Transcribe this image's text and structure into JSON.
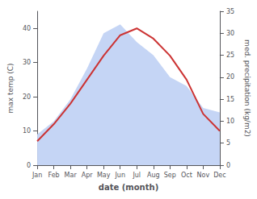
{
  "chart_data": {
    "type": "line",
    "xlabel": "date (month)",
    "ylabel": "max temp (C)",
    "y2label": "med. precipitation (kg/m2)",
    "categories": [
      "Jan",
      "Feb",
      "Mar",
      "Apr",
      "May",
      "Jun",
      "Jul",
      "Aug",
      "Sep",
      "Oct",
      "Nov",
      "Dec"
    ],
    "series": [
      {
        "type": "area",
        "color": "#c5d5f5",
        "axis": "y2",
        "values": [
          7,
          10,
          15,
          22,
          30,
          32,
          28,
          25,
          20,
          18,
          13,
          12
        ]
      },
      {
        "type": "line",
        "color": "#cc3333",
        "values": [
          7,
          12,
          18,
          25,
          32,
          38,
          40,
          37,
          32,
          25,
          15,
          10
        ]
      }
    ],
    "ylim": [
      0,
      45
    ],
    "yticks": [
      0,
      10,
      20,
      30,
      40
    ],
    "y2lim": [
      0,
      35
    ],
    "y2ticks": [
      0,
      5,
      10,
      15,
      20,
      25,
      30,
      35
    ],
    "grid": false
  }
}
